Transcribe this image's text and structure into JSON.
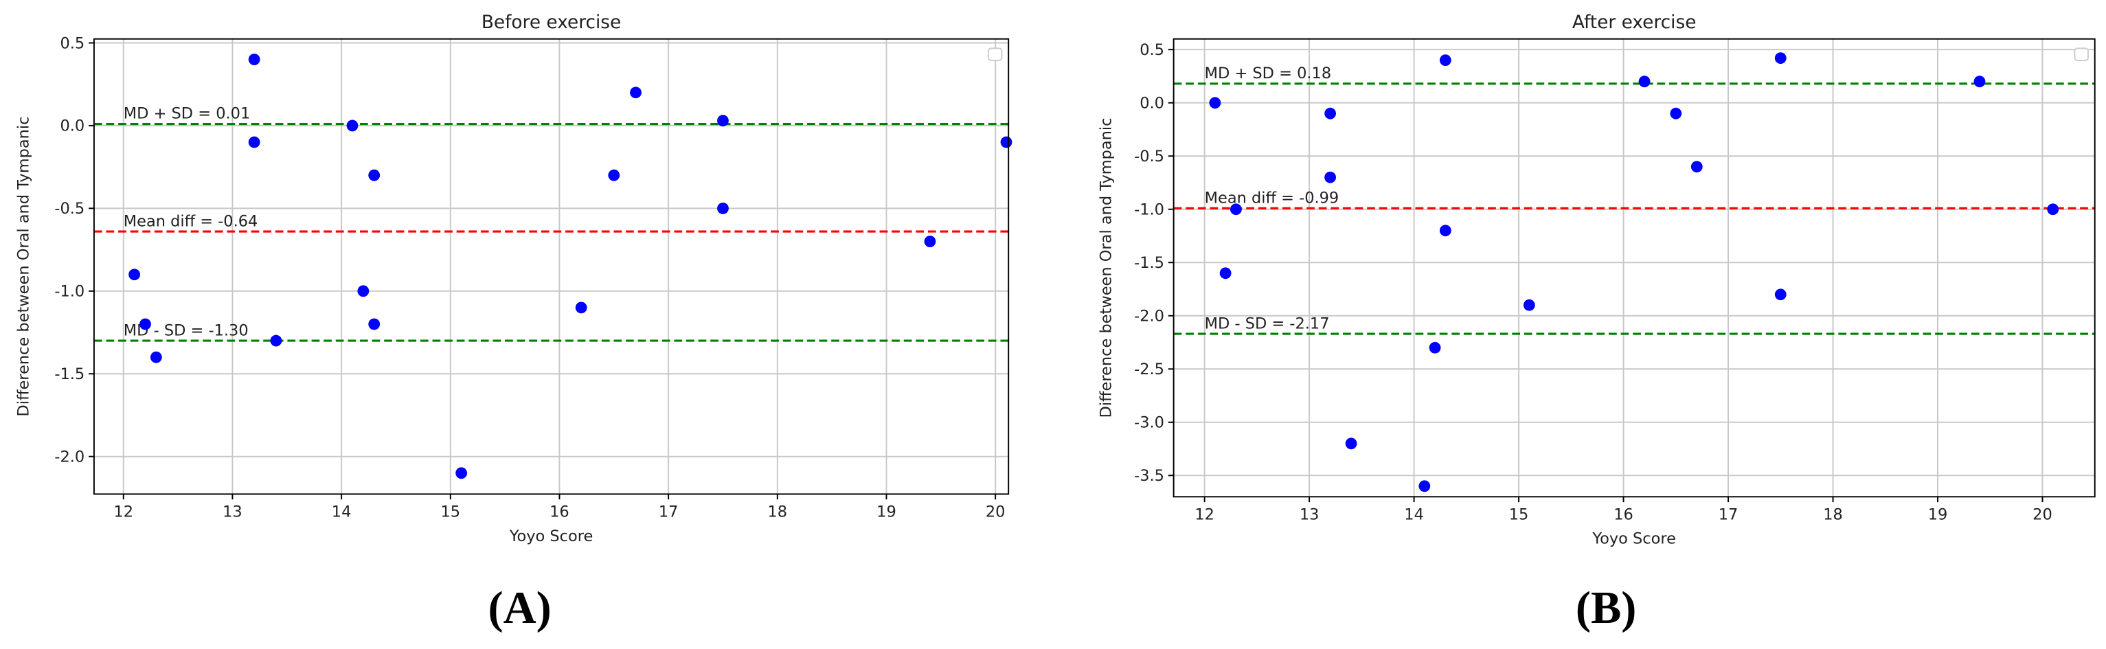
{
  "chart_data": [
    {
      "type": "scatter",
      "title": "Before exercise",
      "x_label": "Yoyo Score",
      "y_label": "Difference between Oral and Tympanic",
      "panel_label": "(A)",
      "series": [
        {
          "color": "#0000ff",
          "x": [
            12.1,
            12.2,
            12.3,
            13.2,
            13.2,
            13.4,
            14.1,
            14.2,
            14.3,
            14.3,
            15.1,
            16.2,
            16.5,
            16.7,
            17.5,
            17.5,
            19.4,
            20.1
          ],
          "values": [
            -0.9,
            -1.2,
            -1.4,
            0.4,
            -0.1,
            -1.3,
            0.0,
            -1.0,
            -0.3,
            -1.2,
            -2.1,
            -1.1,
            -0.3,
            0.2,
            0.03,
            -0.5,
            -0.7,
            -0.1
          ]
        }
      ],
      "hlines": [
        {
          "value": 0.01,
          "label": "MD + SD = 0.01",
          "color": "#008000"
        },
        {
          "value": -0.64,
          "label": "Mean diff = -0.64",
          "color": "#ff0000"
        },
        {
          "value": -1.3,
          "label": "MD - SD = -1.30",
          "color": "#008000"
        }
      ],
      "xlim": [
        11.73,
        20.12
      ],
      "ylim": [
        -2.227,
        0.524
      ],
      "xticks": [
        12,
        13,
        14,
        15,
        16,
        17,
        18,
        19,
        20
      ],
      "yticks": [
        0.5,
        {
          "value": 0,
          "label": "0.0"
        },
        -0.5,
        {
          "value": -1,
          "label": "-1.0"
        },
        -1.5,
        {
          "value": -2,
          "label": "-2.0"
        }
      ],
      "grid": true
    },
    {
      "type": "scatter",
      "title": "After exercise",
      "x_label": "Yoyo Score",
      "y_label": "Difference between Oral and Tympanic",
      "panel_label": "(B)",
      "series": [
        {
          "color": "#0000ff",
          "x": [
            12.1,
            12.2,
            12.3,
            13.2,
            13.2,
            13.4,
            14.1,
            14.2,
            14.3,
            14.3,
            15.1,
            16.2,
            16.5,
            16.7,
            17.5,
            17.5,
            19.4,
            20.1
          ],
          "values": [
            0.0,
            -1.6,
            -1.0,
            -0.1,
            -0.7,
            -3.2,
            -3.6,
            -2.3,
            0.4,
            -1.2,
            -1.9,
            0.2,
            -0.1,
            -0.6,
            0.42,
            -1.8,
            0.2,
            -1.0
          ]
        }
      ],
      "hlines": [
        {
          "value": 0.18,
          "label": "MD + SD = 0.18",
          "color": "#008000"
        },
        {
          "value": -0.99,
          "label": "Mean diff = -0.99",
          "color": "#ff0000"
        },
        {
          "value": -2.17,
          "label": "MD - SD = -2.17",
          "color": "#008000"
        }
      ],
      "xlim": [
        11.705,
        20.5
      ],
      "ylim": [
        -3.7,
        0.6
      ],
      "xticks": [
        12,
        13,
        14,
        15,
        16,
        17,
        18,
        19,
        20
      ],
      "yticks": [
        0.5,
        {
          "value": 0,
          "label": "0.0"
        },
        -0.5,
        {
          "value": -1,
          "label": "-1.0"
        },
        -1.5,
        {
          "value": -2,
          "label": "-2.0"
        },
        -2.5,
        {
          "value": -3,
          "label": "-3.0"
        },
        -3.5
      ],
      "grid": true
    }
  ]
}
